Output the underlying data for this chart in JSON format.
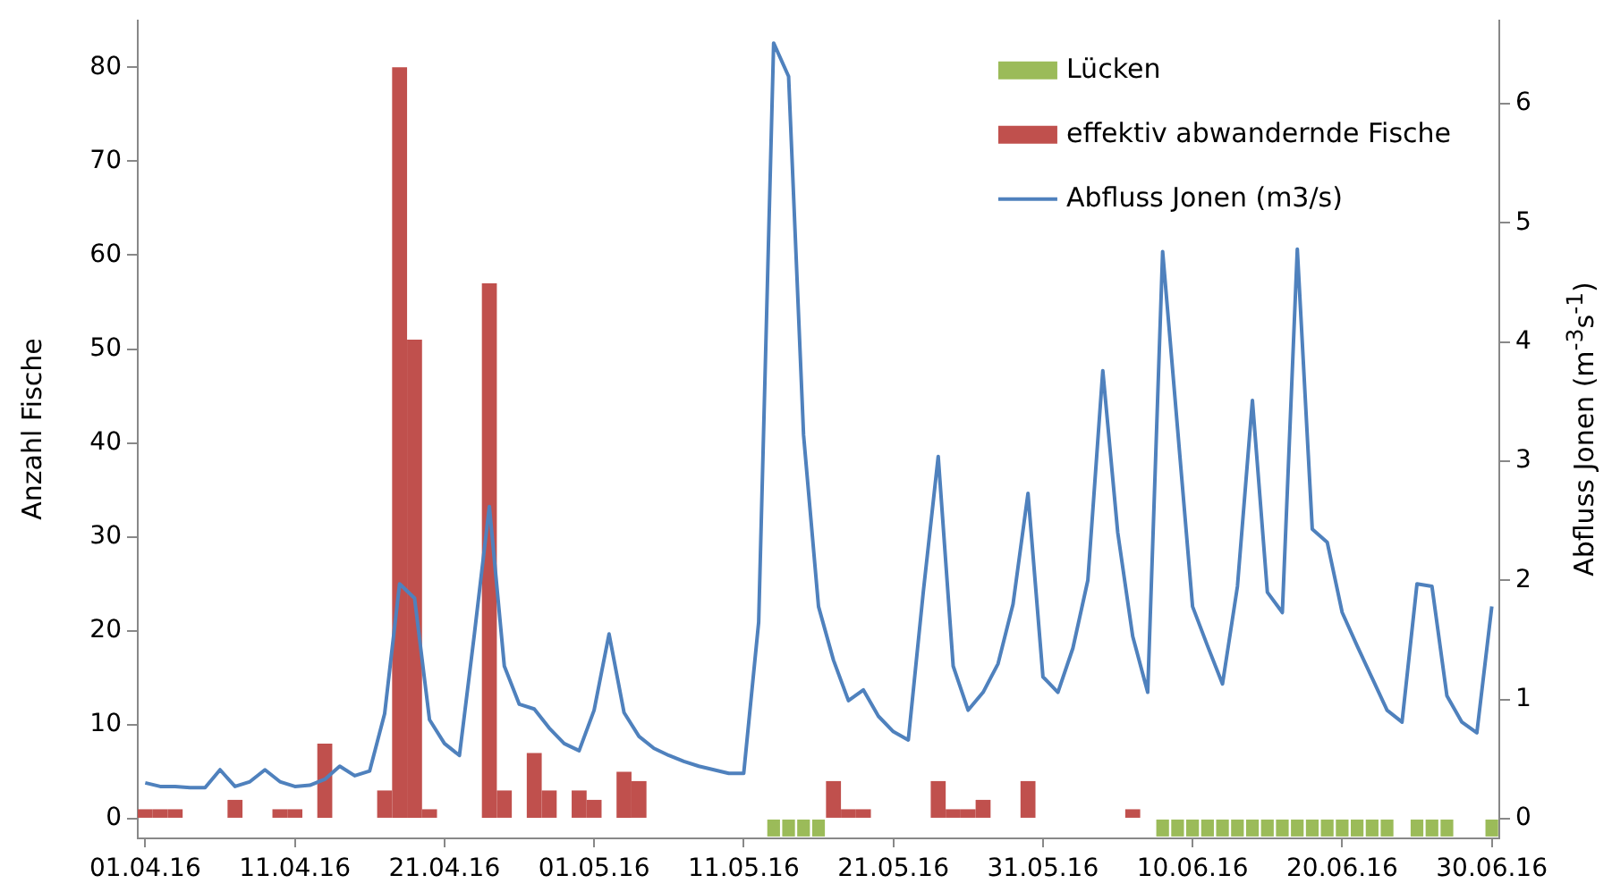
{
  "chart_data": {
    "type": "bar",
    "ylabel": "Anzahl Fische",
    "y2label": "Abfluss Jonen (m$^{-3}$s$^{-1}$)",
    "x": [
      "--04-01",
      "--04-02",
      "--04-03",
      "--04-04",
      "--04-05",
      "--04-06",
      "--04-07",
      "--04-08",
      "--04-09",
      "--04-10",
      "--04-11",
      "--04-12",
      "--04-13",
      "--04-14",
      "--04-15",
      "--04-16",
      "--04-17",
      "--04-18",
      "--04-19",
      "--04-20",
      "--04-21",
      "--04-22",
      "--04-23",
      "--04-24",
      "--04-25",
      "--04-26",
      "--04-27",
      "--04-28",
      "--04-29",
      "--04-30",
      "--05-01",
      "--05-02",
      "--05-03",
      "--05-04",
      "--05-05",
      "--05-06",
      "--05-07",
      "--05-08",
      "--05-09",
      "--05-10",
      "--05-11",
      "--05-12",
      "--05-13",
      "--05-14",
      "--05-15",
      "--05-16",
      "--05-17",
      "--05-18",
      "--05-19",
      "--05-20",
      "--05-21",
      "--05-22",
      "--05-23",
      "--05-24",
      "--05-25",
      "--05-26",
      "--05-27",
      "--05-28",
      "--05-29",
      "--05-30",
      "--05-31",
      "--06-01",
      "--06-02",
      "--06-03",
      "--06-04",
      "--06-05",
      "--06-06",
      "--06-07",
      "--06-08",
      "--06-09",
      "--06-10",
      "--06-11",
      "--06-12",
      "--06-13",
      "--06-14",
      "--06-15",
      "--06-16",
      "--06-17",
      "--06-18",
      "--06-19",
      "--06-20",
      "--06-21",
      "--06-22",
      "--06-23",
      "--06-24",
      "--06-25",
      "--06-26",
      "--06-27",
      "--06-28",
      "--06-29",
      "--06-30"
    ],
    "series": [
      {
        "name": "Lücken",
        "color": "#9bbb59",
        "values": [
          null,
          null,
          null,
          null,
          null,
          null,
          null,
          null,
          null,
          null,
          null,
          null,
          null,
          null,
          null,
          null,
          null,
          null,
          null,
          null,
          null,
          null,
          null,
          null,
          null,
          null,
          null,
          null,
          null,
          null,
          null,
          null,
          null,
          null,
          null,
          null,
          null,
          null,
          null,
          null,
          null,
          null,
          -1.9,
          -1.9,
          -1.9,
          -1.9,
          null,
          null,
          null,
          null,
          null,
          null,
          null,
          null,
          null,
          null,
          null,
          null,
          null,
          null,
          null,
          null,
          null,
          null,
          null,
          null,
          null,
          null,
          -1.9,
          -1.9,
          -1.9,
          -1.9,
          -1.9,
          -1.9,
          -1.9,
          -1.9,
          -1.9,
          -1.9,
          -1.9,
          -1.9,
          -1.9,
          -1.9,
          -1.9,
          -1.9,
          null,
          -1.9,
          -1.9,
          -1.9,
          null,
          null,
          -1.9
        ]
      },
      {
        "name": "effektiv abwandernde Fische",
        "color": "#c0504d",
        "values": [
          1,
          1,
          1,
          0,
          0,
          0,
          2,
          0,
          0,
          1,
          1,
          0,
          8,
          0,
          0,
          0,
          3,
          80,
          51,
          1,
          0,
          0,
          0,
          57,
          3,
          0,
          7,
          3,
          0,
          3,
          2,
          0,
          5,
          4,
          0,
          0,
          0,
          0,
          0,
          0,
          0,
          0,
          0,
          0,
          0,
          0,
          4,
          1,
          1,
          0,
          0,
          0,
          0,
          4,
          1,
          1,
          2,
          0,
          0,
          4,
          0,
          0,
          0,
          0,
          0,
          0,
          1,
          0,
          0,
          0,
          0,
          0,
          0,
          0,
          0,
          0,
          0,
          0,
          0,
          0,
          0,
          0,
          0,
          0,
          0,
          0,
          0,
          0,
          0,
          0,
          0
        ]
      },
      {
        "type": "line",
        "name": "Abfluss Jonen (m3/s)",
        "color": "#4f81bd",
        "axis": "y2",
        "values": [
          0.3,
          0.27,
          0.27,
          0.26,
          0.26,
          0.41,
          0.27,
          0.31,
          0.41,
          0.31,
          0.27,
          0.28,
          0.33,
          0.44,
          0.36,
          0.4,
          0.88,
          1.97,
          1.85,
          0.83,
          0.63,
          0.53,
          1.55,
          2.62,
          1.28,
          0.96,
          0.92,
          0.76,
          0.63,
          0.57,
          0.91,
          1.55,
          0.89,
          0.69,
          0.59,
          0.53,
          0.48,
          0.44,
          0.41,
          0.38,
          0.38,
          1.65,
          6.51,
          6.23,
          3.22,
          1.78,
          1.33,
          0.99,
          1.08,
          0.86,
          0.73,
          0.66,
          1.9,
          3.04,
          1.28,
          0.91,
          1.06,
          1.3,
          1.8,
          2.73,
          1.19,
          1.06,
          1.43,
          2.0,
          3.76,
          2.4,
          1.53,
          1.06,
          4.76,
          3.27,
          1.78,
          1.45,
          1.13,
          1.95,
          3.51,
          1.9,
          1.73,
          4.78,
          2.43,
          2.32,
          1.73,
          1.45,
          1.18,
          0.91,
          0.81,
          1.97,
          1.95,
          1.03,
          0.81,
          0.72,
          1.78
        ]
      }
    ],
    "xlim": [
      "--03-31T12:00",
      "--06-30T12:00"
    ],
    "xticks": [
      {
        "value": "--04-01",
        "label": "01.04.16"
      },
      {
        "value": "--04-11",
        "label": "11.04.16"
      },
      {
        "value": "--04-21",
        "label": "21.04.16"
      },
      {
        "value": "--05-01",
        "label": "01.05.16"
      },
      {
        "value": "--05-11",
        "label": "11.05.16"
      },
      {
        "value": "--05-21",
        "label": "21.05.16"
      },
      {
        "value": "--05-31",
        "label": "31.05.16"
      },
      {
        "value": "--06-10",
        "label": "10.06.16"
      },
      {
        "value": "--06-20",
        "label": "20.06.16"
      },
      {
        "value": "--06-30",
        "label": "30.06.16"
      }
    ],
    "ylim": [
      -2.1,
      85
    ],
    "yticks": [
      0,
      10,
      20,
      30,
      40,
      50,
      60,
      70,
      80
    ],
    "y2lim": [
      -0.166,
      6.7
    ],
    "y2ticks": [
      0,
      1,
      2,
      3,
      4,
      5,
      6
    ],
    "grid": false,
    "legend": "top right"
  }
}
